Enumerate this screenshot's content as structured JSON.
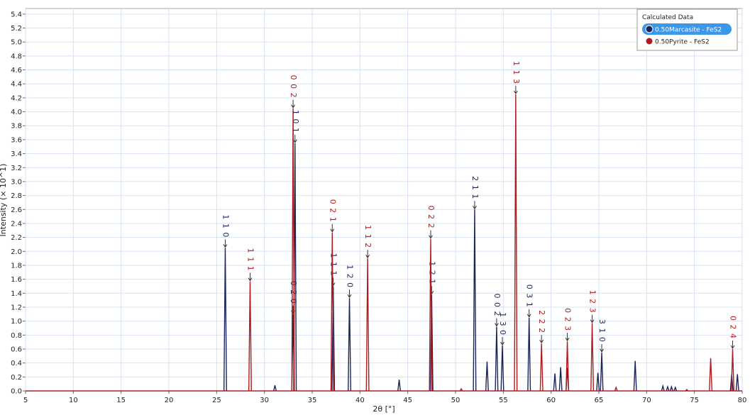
{
  "chart_data": {
    "type": "peaks",
    "xlabel": "2θ [°]",
    "ylabel": "Intensity (× 10^1)",
    "legend_title": "Calculated Data",
    "legend": "top-right",
    "grid": true,
    "xlim": [
      5,
      80
    ],
    "ylim": [
      0,
      5.48
    ],
    "xticks": [
      5,
      10,
      15,
      20,
      25,
      30,
      35,
      40,
      45,
      50,
      55,
      60,
      65,
      70,
      75,
      80
    ],
    "yticks": [
      {
        "value": 0,
        "label": "0.0"
      },
      0.2,
      0.4,
      0.6,
      0.8,
      {
        "value": 1,
        "label": "1.0"
      },
      1.2,
      1.4,
      1.6,
      1.8,
      {
        "value": 2,
        "label": "2.0"
      },
      2.2,
      2.4,
      2.6,
      2.8,
      {
        "value": 3,
        "label": "3.0"
      },
      3.2,
      3.4,
      3.6,
      3.8,
      {
        "value": 4,
        "label": "4.0"
      },
      4.2,
      4.4,
      4.6,
      4.8,
      {
        "value": 5,
        "label": "5.0"
      },
      5.2,
      5.4
    ],
    "series": [
      {
        "name": "0.50Marcasite - FeS2",
        "color": "#1c2559",
        "highlighted": true,
        "x": [
          25.9,
          31.1,
          33.0,
          33.2,
          37.2,
          38.9,
          44.1,
          47.5,
          52.0,
          53.3,
          54.3,
          54.9,
          57.7,
          60.4,
          61.0,
          61.7,
          64.9,
          65.3,
          68.8,
          71.7,
          72.2,
          72.6,
          73.0,
          78.9,
          79.5
        ],
        "values": [
          2.05,
          0.08,
          1.1,
          3.55,
          1.5,
          1.33,
          0.16,
          1.38,
          2.6,
          0.42,
          0.92,
          0.65,
          1.05,
          0.25,
          0.34,
          0.33,
          0.26,
          0.55,
          0.43,
          0.07,
          0.06,
          0.06,
          0.05,
          0.24,
          0.24
        ],
        "peak_labels": [
          "1 1 0",
          null,
          "0 2 0",
          "1 0 1",
          "1 1 1",
          "1 2 0",
          null,
          "1 2 1",
          "2 1 1",
          null,
          "0 0 2",
          "1 3 0",
          "0 3 1",
          null,
          null,
          null,
          null,
          "3 1 0",
          null,
          null,
          null,
          null,
          null,
          null,
          null
        ]
      },
      {
        "name": "0.50Pyrite - FeS2",
        "color": "#b01c1c",
        "highlighted": false,
        "x": [
          28.5,
          33.0,
          37.1,
          40.8,
          47.4,
          50.6,
          56.3,
          59.0,
          61.7,
          64.3,
          66.8,
          74.2,
          76.7,
          79.0
        ],
        "values": [
          1.57,
          4.05,
          2.27,
          1.9,
          2.18,
          0.03,
          4.25,
          0.68,
          0.71,
          0.97,
          0.05,
          0.02,
          0.47,
          0.6
        ],
        "peak_labels": [
          "1 1 1",
          "0 0 2",
          "0 2 1",
          "1 1 2",
          "0 2 2",
          null,
          "1 1 3",
          "2 2 2",
          "0 2 3",
          "1 2 3",
          null,
          null,
          null,
          "0 2 4"
        ]
      }
    ]
  }
}
